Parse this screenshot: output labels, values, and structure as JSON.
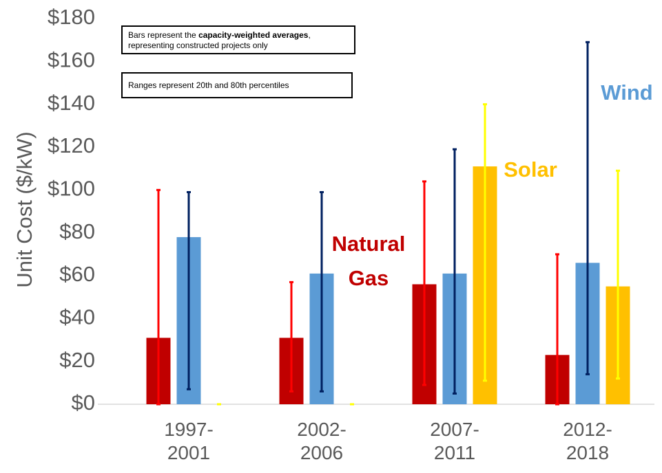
{
  "chart_data": {
    "type": "bar",
    "ylabel": "Unit Cost ($/kW)",
    "categories": [
      "1997-2001",
      "2002-2006",
      "2007-2011",
      "2012-2018"
    ],
    "series": [
      {
        "name": "Natural Gas",
        "color": "#c00000",
        "range_color": "#ff0000",
        "values": [
          31,
          31,
          56,
          23
        ],
        "low": [
          0,
          6,
          9,
          0
        ],
        "high": [
          100,
          57,
          104,
          70
        ]
      },
      {
        "name": "Wind",
        "color": "#5b9bd5",
        "range_color": "#002060",
        "values": [
          78,
          61,
          61,
          66
        ],
        "low": [
          7,
          6,
          5,
          14
        ],
        "high": [
          99,
          99,
          119,
          169
        ]
      },
      {
        "name": "Solar",
        "color": "#ffc000",
        "range_color": "#ffff00",
        "values": [
          0,
          0,
          111,
          55
        ],
        "low": [
          0,
          0,
          11,
          12
        ],
        "high": [
          0,
          0,
          140,
          109
        ]
      }
    ],
    "annotations": [
      {
        "parts": [
          "Bars represent the ",
          "capacity-weighted averages",
          ",\nrepresenting constructed projects only"
        ]
      },
      {
        "parts": [
          "Ranges represent 20th and 80th percentiles"
        ]
      }
    ],
    "ylim": [
      0,
      180
    ],
    "yticks": [
      {
        "value": 0,
        "label": "$0"
      },
      {
        "value": 20,
        "label": "$20"
      },
      {
        "value": 40,
        "label": "$40"
      },
      {
        "value": 60,
        "label": "$60"
      },
      {
        "value": 80,
        "label": "$80"
      },
      {
        "value": 100,
        "label": "$100"
      },
      {
        "value": 120,
        "label": "$120"
      },
      {
        "value": 140,
        "label": "$140"
      },
      {
        "value": 160,
        "label": "$160"
      },
      {
        "value": 180,
        "label": "$180"
      }
    ],
    "grid": false
  }
}
